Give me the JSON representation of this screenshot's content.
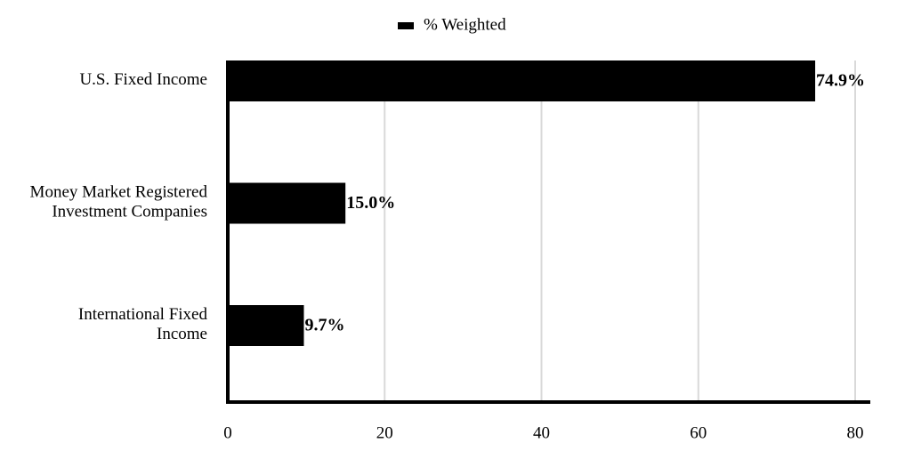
{
  "chart_data": {
    "type": "barh",
    "categories": [
      "U.S. Fixed Income",
      "Money Market Registered Investment Companies",
      "International Fixed Income"
    ],
    "series": [
      {
        "name": "% Weighted",
        "color": "#000000",
        "values": [
          74.9,
          15.0,
          9.7
        ],
        "value_labels": [
          "74.9%",
          "15.0%",
          "9.7%"
        ]
      }
    ],
    "xlim": [
      0,
      82
    ],
    "xticks": [
      0,
      20,
      40,
      60,
      80
    ],
    "grid": true,
    "legend": "top"
  }
}
